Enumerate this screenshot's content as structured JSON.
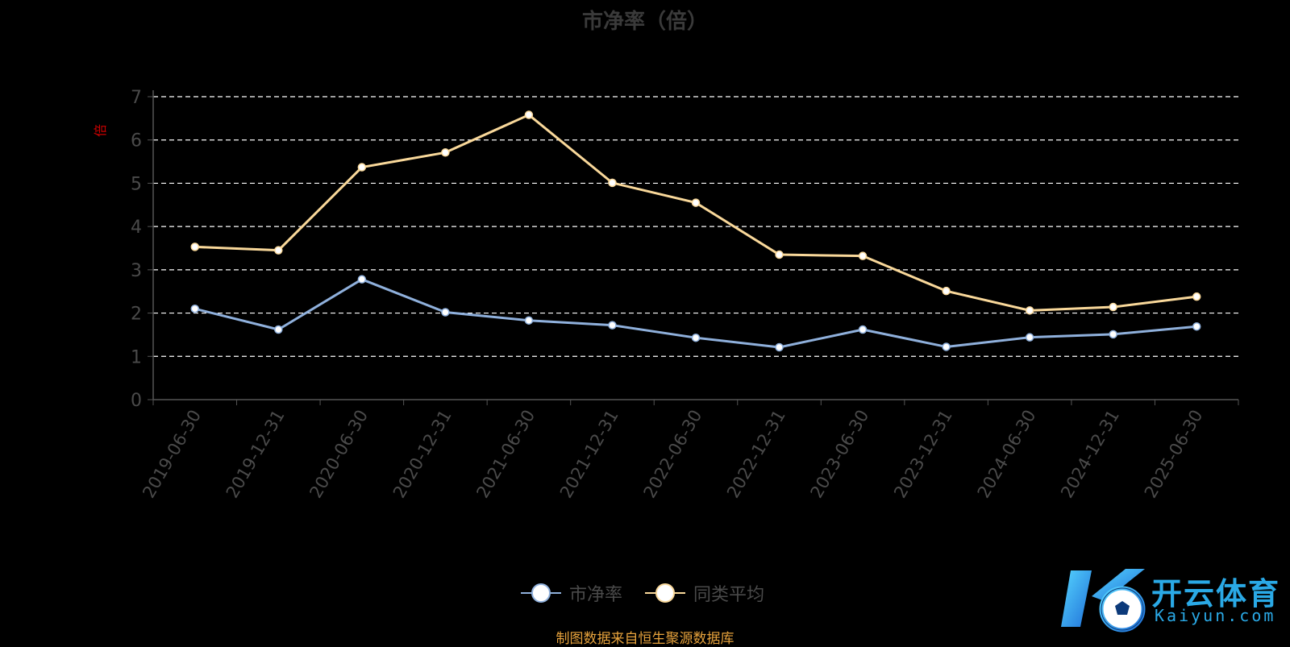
{
  "chart_data": {
    "type": "line",
    "title": "市净率（倍）",
    "ylabel": "倍",
    "ylim": [
      0,
      7
    ],
    "yticks": [
      "0",
      "1",
      "2",
      "3",
      "4",
      "5",
      "6",
      "7"
    ],
    "grid": true,
    "legend_position": "bottom-center",
    "categories": [
      "2019-06-30",
      "2019-12-31",
      "2020-06-30",
      "2020-12-31",
      "2021-06-30",
      "2021-12-31",
      "2022-06-30",
      "2022-12-31",
      "2023-06-30",
      "2023-12-31",
      "2024-06-30",
      "2024-12-31",
      "2025-06-30"
    ],
    "series": [
      {
        "name": "市净率",
        "color": "#8fb0dc",
        "values": [
          2.1,
          1.62,
          2.78,
          2.02,
          1.83,
          1.72,
          1.43,
          1.21,
          1.62,
          1.22,
          1.44,
          1.51,
          1.69
        ]
      },
      {
        "name": "同类平均",
        "color": "#f9d89a",
        "values": [
          3.53,
          3.45,
          5.37,
          5.71,
          6.58,
          5.01,
          4.55,
          3.35,
          3.32,
          2.51,
          2.06,
          2.14,
          2.38
        ]
      }
    ]
  },
  "source_text": "制图数据来自恒生聚源数据库",
  "watermark": {
    "cn": "开云体育",
    "en": "Kaiyun.com"
  }
}
